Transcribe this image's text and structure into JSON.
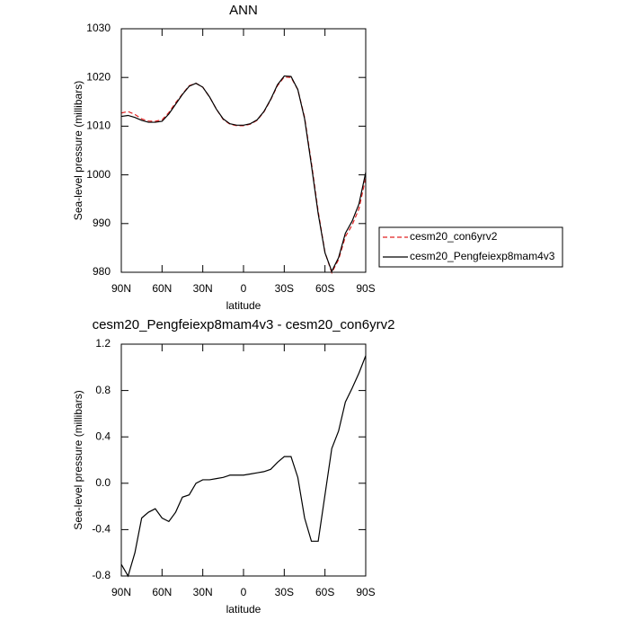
{
  "chart_data": [
    {
      "type": "line",
      "title": "ANN",
      "x_label": "latitude",
      "y_label": "Sea-level pressure (millibars)",
      "x": [
        90,
        85,
        80,
        75,
        70,
        65,
        60,
        55,
        50,
        45,
        40,
        35,
        30,
        25,
        20,
        15,
        10,
        5,
        0,
        -5,
        -10,
        -15,
        -20,
        -25,
        -30,
        -35,
        -40,
        -45,
        -50,
        -55,
        -60,
        -65,
        -70,
        -75,
        -80,
        -85,
        -90
      ],
      "xlim": [
        90,
        -90
      ],
      "xticks": [
        {
          "value": 90,
          "label": "90N"
        },
        {
          "value": 60,
          "label": "60N"
        },
        {
          "value": 30,
          "label": "30N"
        },
        {
          "value": 0,
          "label": "0"
        },
        {
          "value": -30,
          "label": "30S"
        },
        {
          "value": -60,
          "label": "60S"
        },
        {
          "value": -90,
          "label": "90S"
        }
      ],
      "ylim": [
        980,
        1030
      ],
      "yticks": [
        980,
        990,
        1000,
        1010,
        1020,
        1030
      ],
      "series": [
        {
          "name": "cesm20_con6yrv2",
          "color": "#e02020",
          "dash": true,
          "values": [
            1012.7,
            1013.0,
            1012.4,
            1011.5,
            1011.05,
            1011.0,
            1011.3,
            1012.8,
            1014.8,
            1016.6,
            1018.3,
            1018.8,
            1018.0,
            1016.0,
            1013.5,
            1011.4,
            1010.4,
            1010.1,
            1010.1,
            1010.4,
            1011.2,
            1012.9,
            1015.4,
            1018.3,
            1020.1,
            1020.0,
            1017.5,
            1011.8,
            1002.5,
            992.5,
            984.1,
            979.9,
            982.6,
            987.3,
            989.7,
            993.0,
            999.4
          ]
        },
        {
          "name": "cesm20_Pengfeiexp8mam4v3",
          "color": "#000000",
          "dash": false,
          "values": [
            1012.0,
            1012.2,
            1011.8,
            1011.2,
            1010.8,
            1010.8,
            1011.0,
            1012.5,
            1014.5,
            1016.5,
            1018.2,
            1018.8,
            1018.0,
            1016.0,
            1013.5,
            1011.5,
            1010.5,
            1010.2,
            1010.2,
            1010.5,
            1011.3,
            1013.0,
            1015.5,
            1018.5,
            1020.3,
            1020.2,
            1017.5,
            1011.5,
            1002.0,
            992.0,
            984.0,
            980.2,
            983.0,
            988.0,
            990.5,
            994.0,
            1000.5
          ]
        }
      ]
    },
    {
      "type": "line",
      "title": "cesm20_Pengfeiexp8mam4v3 - cesm20_con6yrv2",
      "x_label": "latitude",
      "y_label": "Sea-level pressure (millibars)",
      "x": [
        90,
        85,
        80,
        75,
        70,
        65,
        60,
        55,
        50,
        45,
        40,
        35,
        30,
        25,
        20,
        15,
        10,
        5,
        0,
        -5,
        -10,
        -15,
        -20,
        -25,
        -30,
        -35,
        -40,
        -45,
        -50,
        -55,
        -60,
        -65,
        -70,
        -75,
        -80,
        -85,
        -90
      ],
      "xlim": [
        90,
        -90
      ],
      "xticks": [
        {
          "value": 90,
          "label": "90N"
        },
        {
          "value": 60,
          "label": "60N"
        },
        {
          "value": 30,
          "label": "30N"
        },
        {
          "value": 0,
          "label": "0"
        },
        {
          "value": -30,
          "label": "30S"
        },
        {
          "value": -60,
          "label": "60S"
        },
        {
          "value": -90,
          "label": "90S"
        }
      ],
      "ylim": [
        -0.8,
        1.2
      ],
      "yticks": [
        -0.8,
        -0.4,
        {
          "value": 0,
          "label": "0.0"
        },
        0.4,
        0.8,
        1.2
      ],
      "series": [
        {
          "color": "#000000",
          "dash": false,
          "values": [
            -0.7,
            -0.8,
            -0.6,
            -0.3,
            -0.25,
            -0.22,
            -0.3,
            -0.33,
            -0.25,
            -0.12,
            -0.1,
            0.0,
            0.03,
            0.03,
            0.04,
            0.05,
            0.07,
            0.07,
            0.07,
            0.08,
            0.09,
            0.1,
            0.12,
            0.18,
            0.23,
            0.23,
            0.05,
            -0.3,
            -0.5,
            -0.5,
            -0.1,
            0.3,
            0.45,
            0.7,
            0.82,
            0.95,
            1.1
          ]
        }
      ]
    }
  ]
}
